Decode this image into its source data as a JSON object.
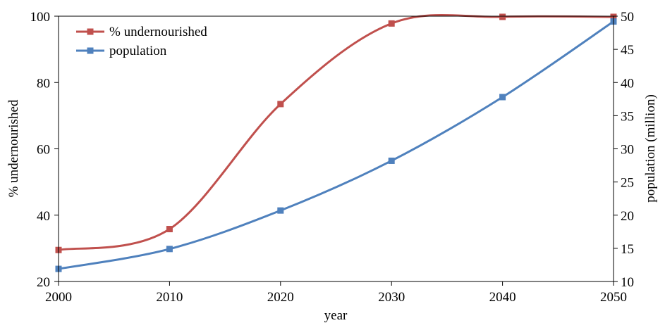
{
  "chart_data": {
    "type": "line",
    "x": [
      2000,
      2010,
      2020,
      2030,
      2040,
      2050
    ],
    "xlabel": "year",
    "xlim": [
      2000,
      2050
    ],
    "xticks": [
      "2000",
      "2010",
      "2020",
      "2030",
      "2040",
      "2050"
    ],
    "ylabel_left": "% undernourished",
    "ylim_left": [
      20,
      100
    ],
    "yticks_left": [
      "20",
      "40",
      "60",
      "80",
      "100"
    ],
    "ylabel_right": "population (million)",
    "ylim_right": [
      10,
      50
    ],
    "yticks_right": [
      "10",
      "15",
      "20",
      "25",
      "30",
      "35",
      "40",
      "45",
      "50"
    ],
    "grid": false,
    "legend_position": "top-left",
    "smooth": true,
    "series": [
      {
        "name": "% undernourished",
        "axis": "left",
        "color": "#c0504d",
        "marker": "square",
        "values": [
          29.5,
          35.8,
          73.5,
          97.8,
          99.8,
          99.8
        ]
      },
      {
        "name": "population",
        "axis": "right",
        "color": "#4f81bd",
        "marker": "square",
        "values": [
          11.9,
          14.9,
          20.7,
          28.2,
          37.8,
          49.2
        ]
      }
    ]
  }
}
